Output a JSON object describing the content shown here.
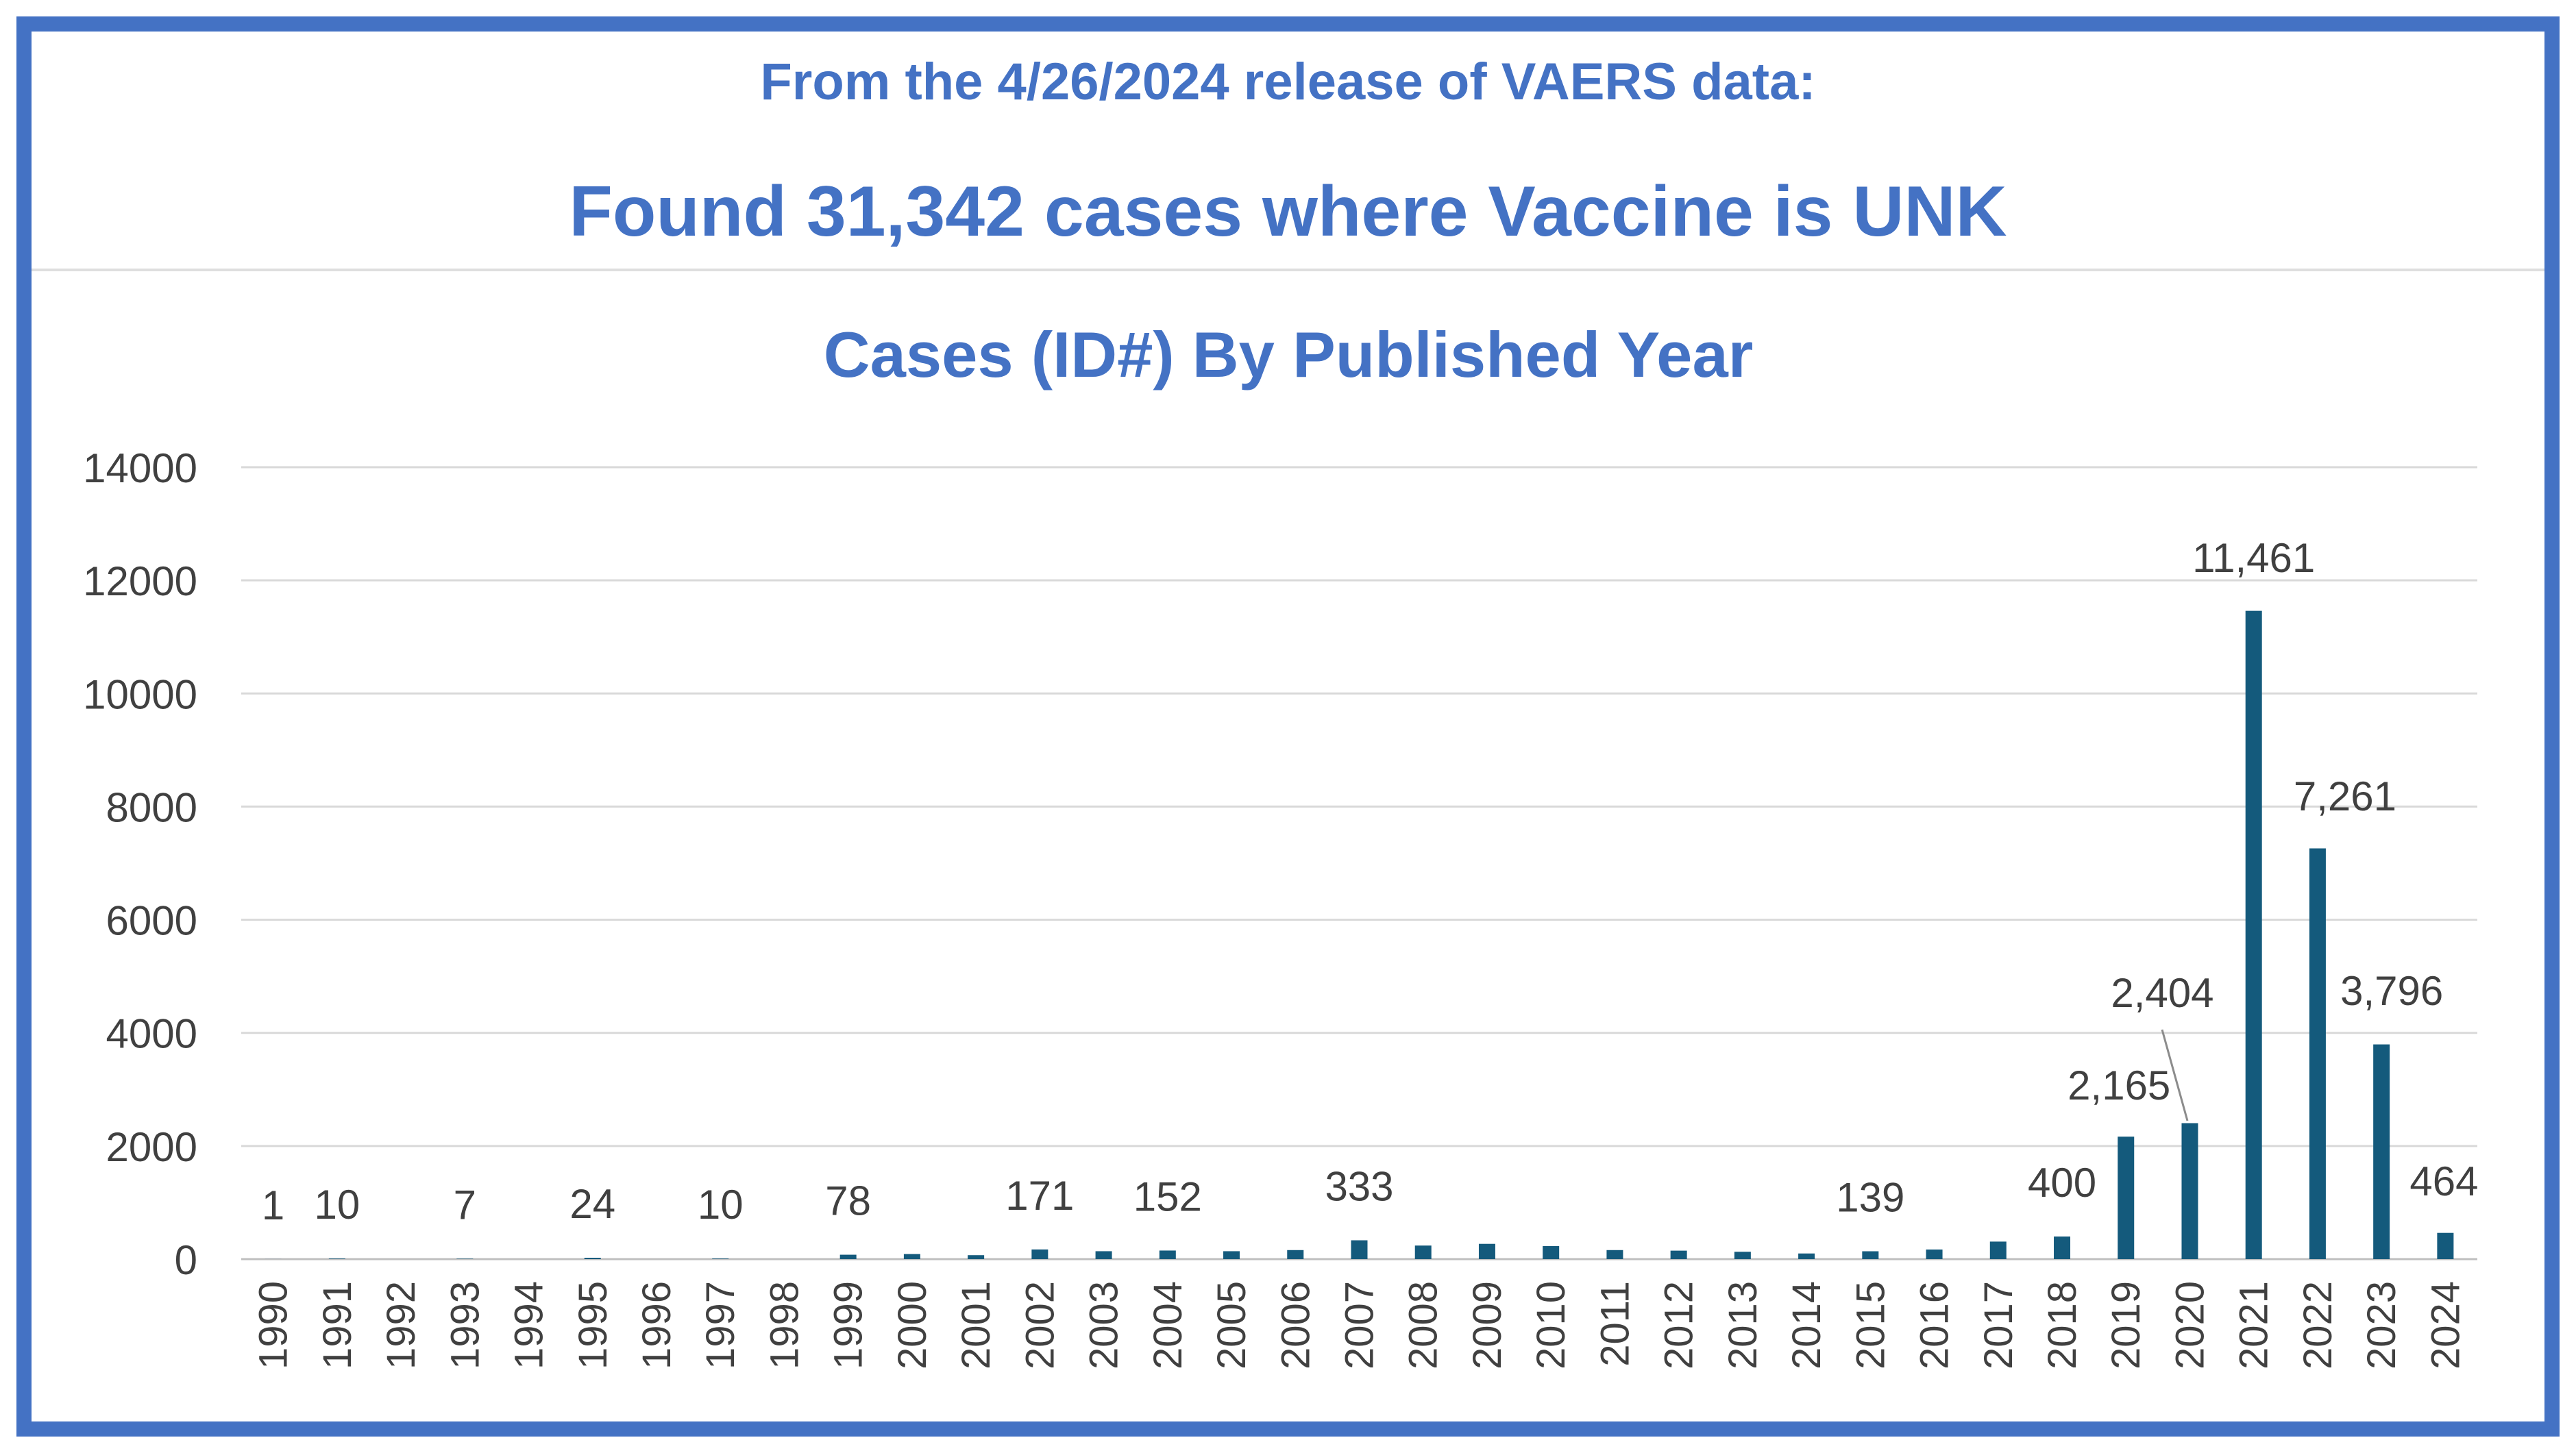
{
  "header": {
    "release_line": "From the 4/26/2024 release of VAERS data:",
    "found_line": "Found 31,342 cases where Vaccine is UNK"
  },
  "colors": {
    "frame": "#4472c4",
    "title": "#4472c4",
    "bar": "#145a7c",
    "gridline": "#d9d9d9",
    "label": "#404040"
  },
  "chart_data": {
    "type": "bar",
    "title": "Cases (ID#) By Published Year",
    "xlabel": "",
    "ylabel": "",
    "ylim": [
      0,
      14000
    ],
    "yticks": [
      0,
      2000,
      4000,
      6000,
      8000,
      10000,
      12000,
      14000
    ],
    "grid": true,
    "legend": "none",
    "categories": [
      "1990",
      "1991",
      "1992",
      "1993",
      "1994",
      "1995",
      "1996",
      "1997",
      "1998",
      "1999",
      "2000",
      "2001",
      "2002",
      "2003",
      "2004",
      "2005",
      "2006",
      "2007",
      "2008",
      "2009",
      "2010",
      "2011",
      "2012",
      "2013",
      "2014",
      "2015",
      "2016",
      "2017",
      "2018",
      "2019",
      "2020",
      "2021",
      "2022",
      "2023",
      "2024"
    ],
    "values": [
      1,
      10,
      0,
      7,
      0,
      24,
      0,
      10,
      0,
      78,
      90,
      70,
      171,
      140,
      152,
      140,
      160,
      333,
      240,
      270,
      230,
      160,
      150,
      130,
      100,
      139,
      170,
      310,
      400,
      2165,
      2404,
      11461,
      7261,
      3796,
      464
    ],
    "data_labels": [
      {
        "index": 0,
        "text": "1"
      },
      {
        "index": 1,
        "text": "10"
      },
      {
        "index": 3,
        "text": "7"
      },
      {
        "index": 5,
        "text": "24"
      },
      {
        "index": 7,
        "text": "10"
      },
      {
        "index": 9,
        "text": "78"
      },
      {
        "index": 12,
        "text": "171"
      },
      {
        "index": 14,
        "text": "152"
      },
      {
        "index": 17,
        "text": "333"
      },
      {
        "index": 25,
        "text": "139"
      },
      {
        "index": 28,
        "text": "400"
      },
      {
        "index": 29,
        "text": "2,165"
      },
      {
        "index": 30,
        "text": "2,404"
      },
      {
        "index": 31,
        "text": "11,461"
      },
      {
        "index": 32,
        "text": "7,261"
      },
      {
        "index": 33,
        "text": "3,796"
      },
      {
        "index": 34,
        "text": "464"
      }
    ]
  }
}
